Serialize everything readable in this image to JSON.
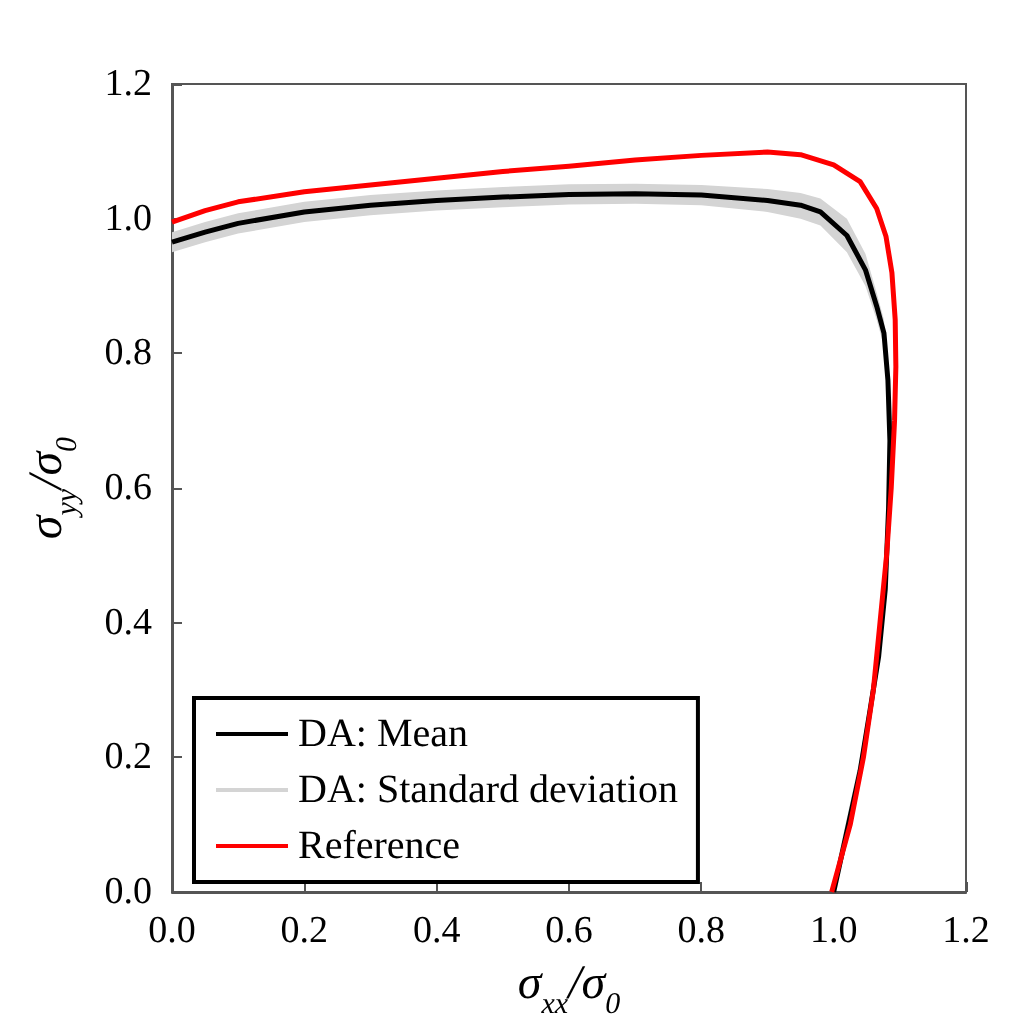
{
  "chart_data": {
    "type": "line",
    "xlabel": "σ$_{xx}$/σ$_{0}$",
    "ylabel": "σ$_{yy}$/σ$_{0}$",
    "xlim": [
      0,
      1.2
    ],
    "xticks": [
      {
        "value": 0,
        "label": "0.0"
      },
      {
        "value": 0.2,
        "label": "0.2"
      },
      {
        "value": 0.4,
        "label": "0.4"
      },
      {
        "value": 0.6,
        "label": "0.6"
      },
      {
        "value": 0.8,
        "label": "0.8"
      },
      {
        "value": 1,
        "label": "1.0"
      },
      {
        "value": 1.2,
        "label": "1.2"
      }
    ],
    "ylim": [
      0,
      1.2
    ],
    "yticks": [
      {
        "value": 0,
        "label": "0.0"
      },
      {
        "value": 0.2,
        "label": "0.2"
      },
      {
        "value": 0.4,
        "label": "0.4"
      },
      {
        "value": 0.6,
        "label": "0.6"
      },
      {
        "value": 0.8,
        "label": "0.8"
      },
      {
        "value": 1,
        "label": "1.0"
      },
      {
        "value": 1.2,
        "label": "1.2"
      }
    ],
    "grid": false,
    "legend": "bottom left",
    "marker": "none",
    "line_style": "solid",
    "annotations": [
      "DA: Standard deviation"
    ],
    "series": [
      {
        "name": "DA: Mean",
        "color": "#000000",
        "x": [
          0,
          0.05,
          0.1,
          0.2,
          0.3,
          0.4,
          0.5,
          0.6,
          0.7,
          0.8,
          0.9,
          0.95,
          0.98,
          1.02,
          1.048,
          1.065,
          1.076,
          1.082,
          1.085,
          1.083,
          1.078,
          1.068,
          1.055,
          1.04,
          1.02,
          1.0
        ],
        "values": [
          0.965,
          0.98,
          0.993,
          1.01,
          1.02,
          1.027,
          1.032,
          1.036,
          1.037,
          1.035,
          1.027,
          1.02,
          1.01,
          0.975,
          0.924,
          0.87,
          0.83,
          0.76,
          0.67,
          0.57,
          0.45,
          0.35,
          0.27,
          0.18,
          0.09,
          0
        ],
        "lower": [
          0.95,
          0.965,
          0.978,
          0.995,
          1.005,
          1.012,
          1.017,
          1.021,
          1.022,
          1.02,
          1.01,
          1.0,
          0.99,
          0.95,
          0.9,
          0.85,
          0.81,
          0.74,
          0.65,
          0.55,
          0.43,
          0.33,
          0.25,
          0.16,
          0.07,
          0
        ],
        "upper": [
          0.98,
          0.995,
          1.008,
          1.025,
          1.035,
          1.042,
          1.047,
          1.051,
          1.052,
          1.05,
          1.044,
          1.038,
          1.03,
          1.0,
          0.948,
          0.89,
          0.85,
          0.78,
          0.69,
          0.59,
          0.47,
          0.37,
          0.29,
          0.2,
          0.11,
          0.02
        ]
      },
      {
        "name": "Reference",
        "color": "#ff0000",
        "x": [
          0,
          0.05,
          0.1,
          0.2,
          0.3,
          0.4,
          0.5,
          0.6,
          0.7,
          0.8,
          0.9,
          0.95,
          1.0,
          1.04,
          1.065,
          1.079,
          1.088,
          1.093,
          1.094,
          1.092,
          1.087,
          1.08,
          1.07,
          1.06,
          1.045,
          1.025,
          0.997
        ],
        "values": [
          0.995,
          1.012,
          1.025,
          1.04,
          1.05,
          1.06,
          1.07,
          1.078,
          1.087,
          1.094,
          1.099,
          1.095,
          1.08,
          1.055,
          1.015,
          0.974,
          0.92,
          0.85,
          0.78,
          0.7,
          0.6,
          0.5,
          0.4,
          0.3,
          0.2,
          0.1,
          0
        ]
      }
    ]
  }
}
